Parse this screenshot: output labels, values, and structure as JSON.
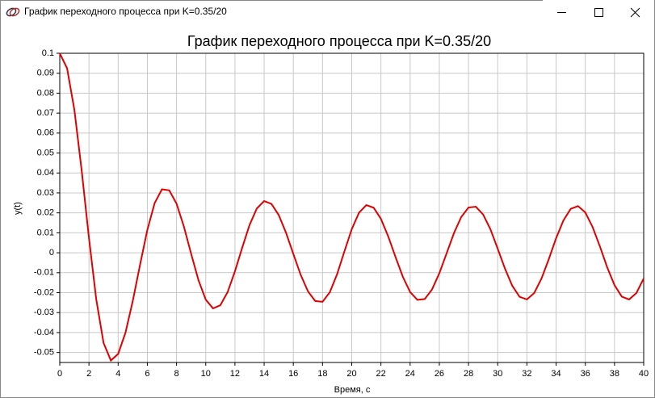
{
  "window": {
    "title": "График переходного процесса при K=0.35/20"
  },
  "chart_data": {
    "type": "line",
    "title": "График переходного процесса при K=0.35/20",
    "x_label": "Время, с",
    "y_label": "y(t)",
    "x": [
      0,
      0.5,
      1,
      1.5,
      2,
      2.5,
      3,
      3.5,
      4,
      4.5,
      5,
      5.5,
      6,
      6.5,
      7,
      7.5,
      8,
      8.5,
      9,
      9.5,
      10,
      10.5,
      11,
      11.5,
      12,
      12.5,
      13,
      13.5,
      14,
      14.5,
      15,
      15.5,
      16,
      16.5,
      17,
      17.5,
      18,
      18.5,
      19,
      19.5,
      20,
      20.5,
      21,
      21.5,
      22,
      22.5,
      23,
      23.5,
      24,
      24.5,
      25,
      25.5,
      26,
      26.5,
      27,
      27.5,
      28,
      28.5,
      29,
      29.5,
      30,
      30.5,
      31,
      31.5,
      32,
      32.5,
      33,
      33.5,
      34,
      34.5,
      35,
      35.5,
      36,
      36.5,
      37,
      37.5,
      38,
      38.5,
      39,
      39.5,
      40
    ],
    "series": [
      {
        "name": "y(t)",
        "color": "#e00000",
        "values": [
          0.1,
          0.0925,
          0.0717,
          0.0413,
          0.0074,
          -0.0234,
          -0.0452,
          -0.054,
          -0.0507,
          -0.0401,
          -0.0242,
          -0.006,
          0.0115,
          0.0249,
          0.0318,
          0.0313,
          0.0246,
          0.0132,
          -0.0005,
          -0.0137,
          -0.0235,
          -0.0279,
          -0.0263,
          -0.0197,
          -0.0093,
          0.0026,
          0.0139,
          0.0222,
          0.0259,
          0.0245,
          0.0189,
          0.01,
          -0.0006,
          -0.011,
          -0.0193,
          -0.0242,
          -0.0246,
          -0.0198,
          -0.0107,
          0.0007,
          0.0118,
          0.0201,
          0.0239,
          0.0226,
          0.017,
          0.0082,
          -0.0021,
          -0.012,
          -0.0197,
          -0.0236,
          -0.0232,
          -0.0184,
          -0.0103,
          -0.0003,
          0.0098,
          0.0179,
          0.0227,
          0.0231,
          0.0192,
          0.0118,
          0.002,
          -0.008,
          -0.0166,
          -0.0221,
          -0.0234,
          -0.0202,
          -0.0129,
          -0.0032,
          0.0073,
          0.0162,
          0.022,
          0.0234,
          0.0202,
          0.0129,
          0.0032,
          -0.0073,
          -0.0162,
          -0.022,
          -0.0234,
          -0.0202,
          -0.0129
        ]
      }
    ],
    "xlim": [
      0,
      40
    ],
    "xticks": [
      0,
      2,
      4,
      6,
      8,
      10,
      12,
      14,
      16,
      18,
      20,
      22,
      24,
      26,
      28,
      30,
      32,
      34,
      36,
      38,
      40
    ],
    "ylim": [
      -0.055,
      0.1
    ],
    "yticks": [
      0.1,
      0.09,
      0.08,
      0.07,
      0.06,
      0.05,
      0.04,
      0.03,
      0.02,
      0.01,
      0,
      -0.01,
      -0.02,
      -0.03,
      -0.04,
      -0.05
    ],
    "grid": true
  }
}
